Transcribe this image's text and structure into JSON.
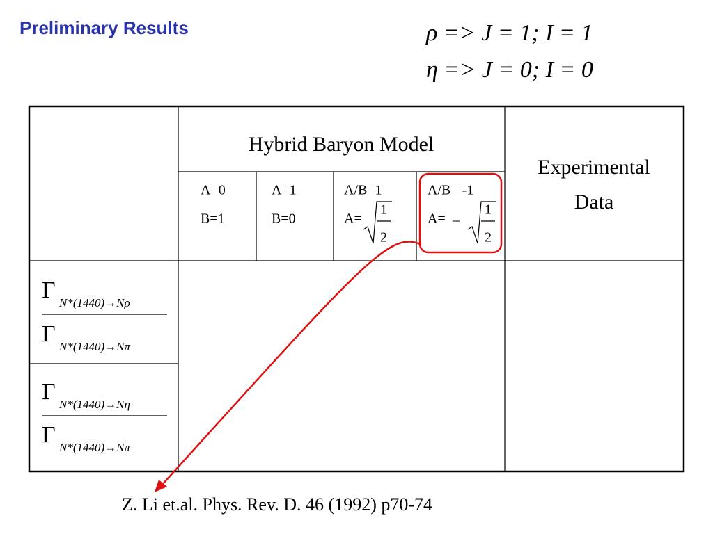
{
  "header": {
    "title": "Preliminary Results",
    "equations": [
      "ρ => J = 1; I = 1",
      "η => J = 0; I = 0"
    ]
  },
  "table": {
    "group_header": "Hybrid Baryon Model",
    "data_header": [
      "Experimental",
      "Data"
    ],
    "columns": [
      {
        "line1": "A=0",
        "line2": "B=1"
      },
      {
        "line1": "A=1",
        "line2": "B=0"
      },
      {
        "line1": "A/B=1",
        "line2": "A=",
        "numerator": "1",
        "denominator": "2"
      },
      {
        "line1": "A/B= -1",
        "line2": "A=",
        "sign": "–",
        "numerator": "1",
        "denominator": "2"
      }
    ],
    "rows": [
      {
        "numerator": {
          "symbol": "Γ",
          "subscript": "N*(1440)→Nρ"
        },
        "denominator": {
          "symbol": "Γ",
          "subscript": "N*(1440)→Nπ"
        }
      },
      {
        "numerator": {
          "symbol": "Γ",
          "subscript": "N*(1440)→Nη"
        },
        "denominator": {
          "symbol": "Γ",
          "subscript": "N*(1440)→Nπ"
        }
      }
    ]
  },
  "footer": {
    "citation": "Z. Li et.al. Phys. Rev. D. 46 (1992) p70-74"
  }
}
